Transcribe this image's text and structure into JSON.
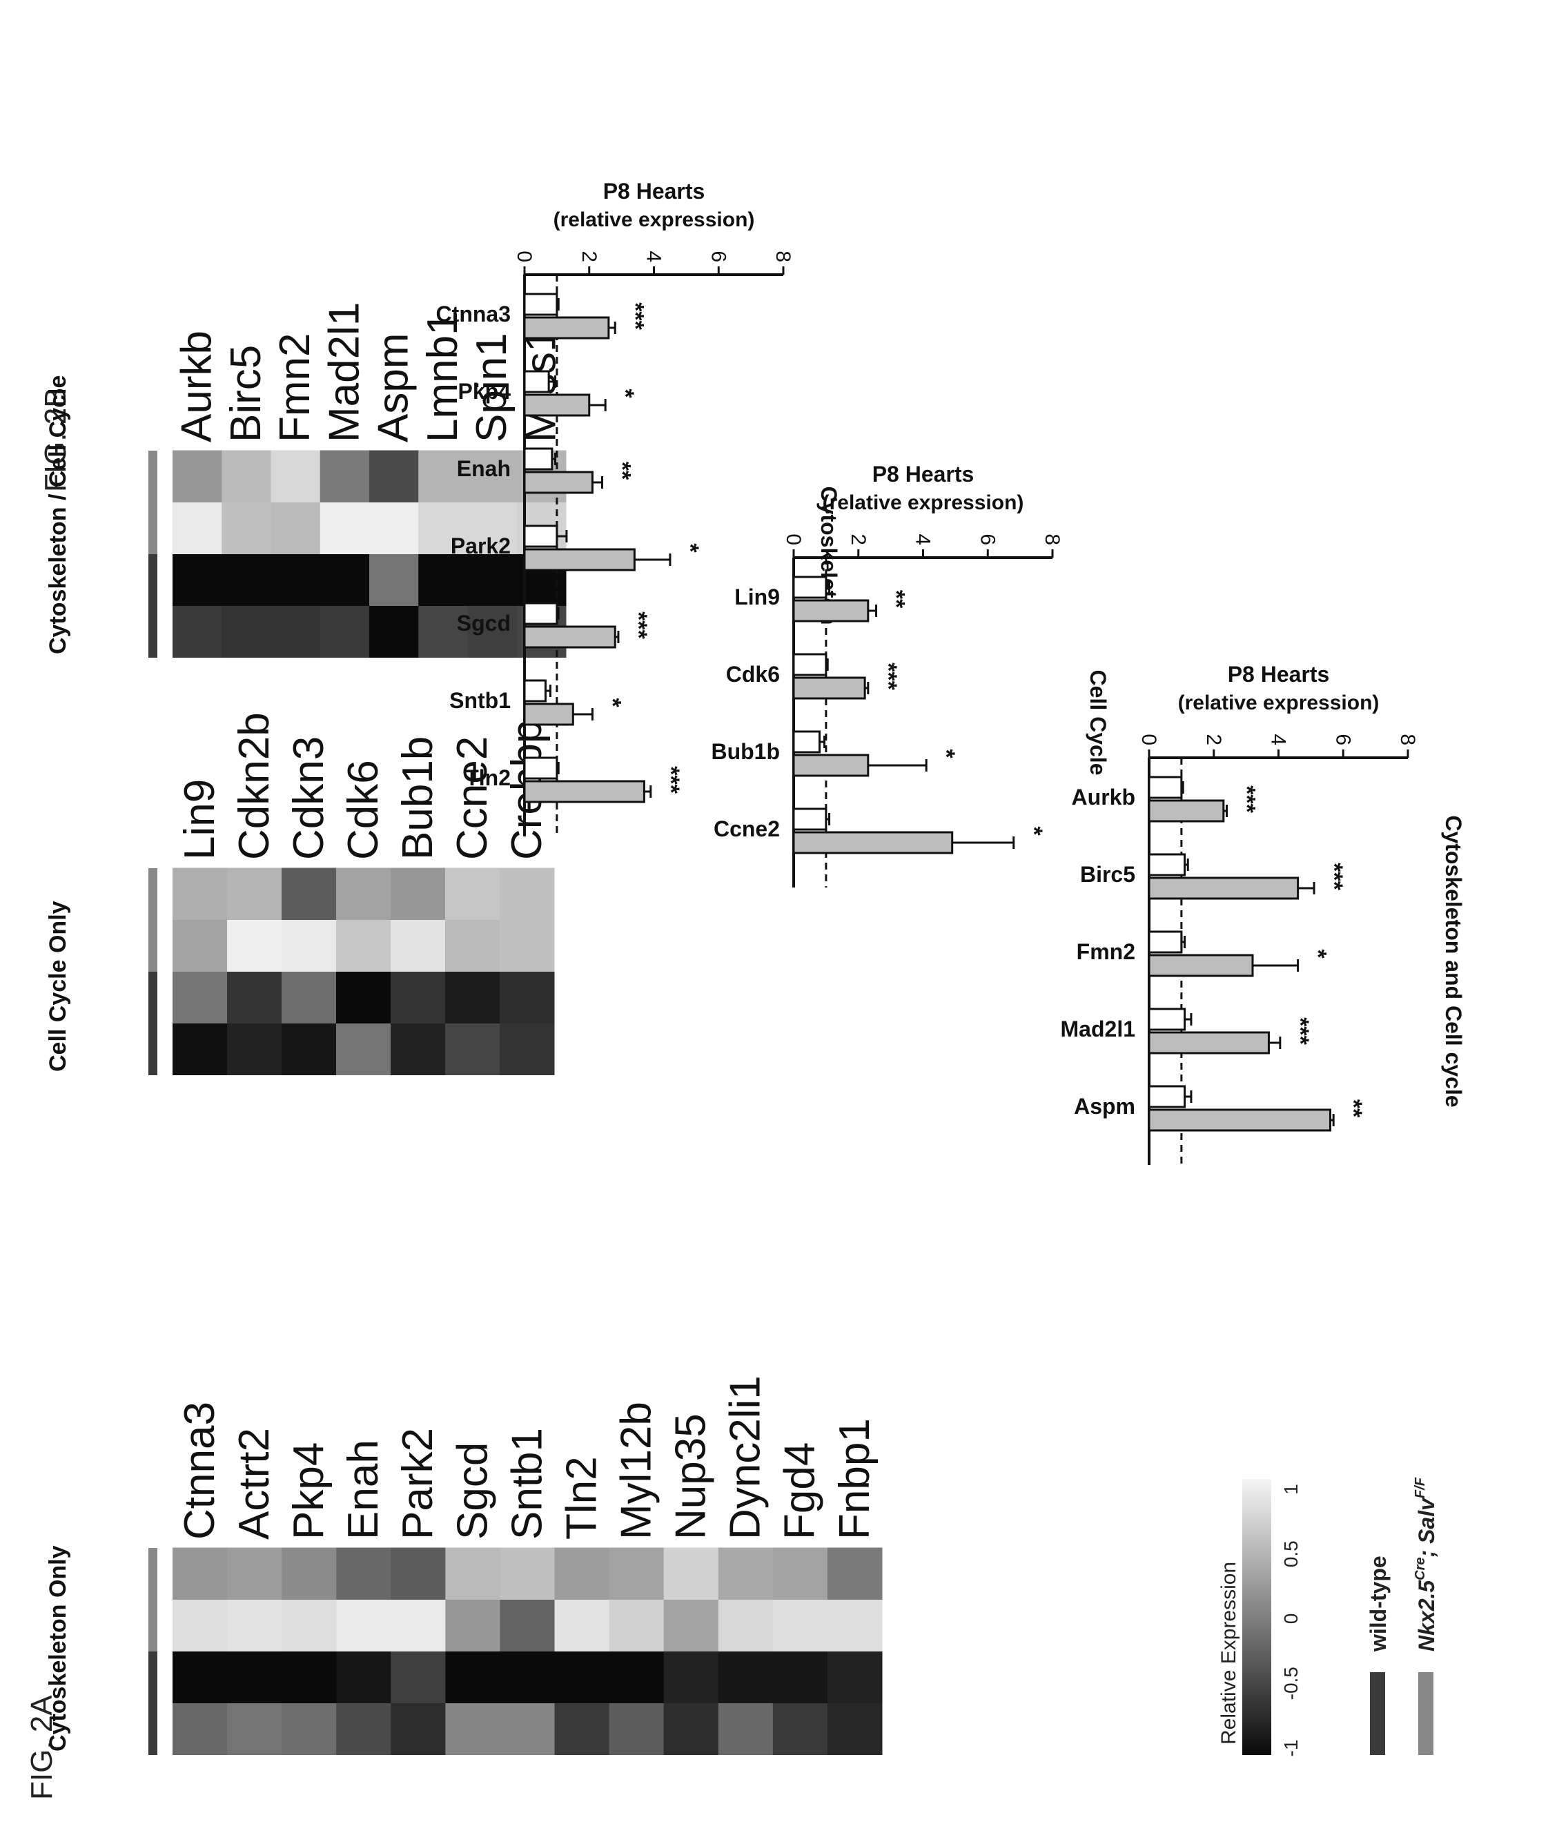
{
  "figure_labels": {
    "fig_a": "FIG. 2A",
    "fig_b": "FIG. 2B"
  },
  "heatmap_panels": [
    {
      "title": "Cytoskeleton Only",
      "genes": [
        "Ctnna3",
        "Actrt2",
        "Pkp4",
        "Enah",
        "Park2",
        "Sgcd",
        "Sntb1",
        "Tln2",
        "Myl12b",
        "Nup35",
        "Dync2li1",
        "Fgd4",
        "Fnbp1"
      ],
      "columns": [
        "wild-type",
        "wild-type",
        "Nkx2.5Cre; SalvF/F",
        "Nkx2.5Cre; SalvF/F"
      ],
      "values": [
        [
          -0.2,
          -0.1,
          -0.15,
          -0.45,
          -0.7,
          0.05,
          0.05,
          -0.6,
          -0.3,
          -0.7,
          -0.2,
          -0.6,
          -0.75
        ],
        [
          -1.0,
          -1.0,
          -1.0,
          -0.9,
          -0.55,
          -1.0,
          -1.0,
          -1.0,
          -1.0,
          -0.8,
          -0.9,
          -0.9,
          -0.8
        ],
        [
          0.8,
          0.85,
          0.8,
          0.9,
          0.9,
          0.2,
          -0.25,
          0.85,
          0.7,
          0.3,
          0.75,
          0.8,
          0.8
        ],
        [
          0.2,
          0.25,
          0.1,
          -0.2,
          -0.3,
          0.5,
          0.55,
          0.25,
          0.3,
          0.7,
          0.35,
          0.3,
          -0.05
        ]
      ]
    },
    {
      "title": "Cell Cycle Only",
      "genes": [
        "Lin9",
        "Cdkn2b",
        "Cdkn3",
        "Cdk6",
        "Bub1b",
        "Ccne2",
        "Crebbp"
      ],
      "columns": [
        "wild-type",
        "wild-type",
        "Nkx2.5Cre; SalvF/F",
        "Nkx2.5Cre; SalvF/F"
      ],
      "values": [
        [
          -0.95,
          -0.8,
          -0.9,
          -0.1,
          -0.8,
          -0.5,
          -0.65
        ],
        [
          -0.1,
          -0.65,
          -0.15,
          -1.0,
          -0.65,
          -0.85,
          -0.7
        ],
        [
          0.3,
          0.95,
          0.9,
          0.6,
          0.85,
          0.5,
          0.55
        ],
        [
          0.4,
          0.45,
          -0.3,
          0.3,
          0.2,
          0.6,
          0.55
        ]
      ]
    },
    {
      "title": "Cytoskeleton / Cell Cycle",
      "genes": [
        "Aurkb",
        "Birc5",
        "Fmn2",
        "Mad2l1",
        "Aspm",
        "Lmnb1",
        "Spin1",
        "Mtss1"
      ],
      "columns": [
        "wild-type",
        "wild-type",
        "Nkx2.5Cre; SalvF/F",
        "Nkx2.5Cre; SalvF/F"
      ],
      "values": [
        [
          -0.6,
          -0.65,
          -0.65,
          -0.6,
          -1.0,
          -0.5,
          -0.55,
          -0.5
        ],
        [
          -1.0,
          -1.0,
          -1.0,
          -1.0,
          -0.1,
          -1.0,
          -1.0,
          -1.0
        ],
        [
          0.9,
          0.55,
          0.5,
          0.95,
          0.95,
          0.75,
          0.75,
          0.7
        ],
        [
          0.2,
          0.5,
          0.75,
          -0.05,
          -0.45,
          0.45,
          0.45,
          0.45
        ]
      ]
    }
  ],
  "color_scale": {
    "title": "Relative Expression",
    "ticks": [
      "-1",
      "-0.5",
      "0",
      "0.5",
      "1"
    ],
    "low_color": "#0a0a0a",
    "high_color": "#f5f5f5"
  },
  "legend": {
    "wild_type": {
      "label": "wild-type",
      "color": "#3a3a3a"
    },
    "mutant": {
      "label_main": "Nkx2.5",
      "label_sup1": "Cre",
      "label_mid": "; Salv",
      "label_sup2": "F/F",
      "color": "#888888"
    }
  },
  "chart_data": [
    {
      "type": "bar",
      "title": "Cytoskeleton",
      "ylabel_line1": "P8 Hearts",
      "ylabel_line2": "(relative expression)",
      "ylim": [
        0,
        8
      ],
      "yticks": [
        "0",
        "2",
        "4",
        "6",
        "8"
      ],
      "categories": [
        "Ctnna3",
        "Pkp4",
        "Enah",
        "Park2",
        "Sgcd",
        "Sntb1",
        "Tln2"
      ],
      "series": [
        {
          "values": [
            1.0,
            0.75,
            0.85,
            1.0,
            1.0,
            0.65,
            1.0
          ],
          "errors": [
            0.05,
            0.2,
            0.1,
            0.3,
            0.05,
            0.15,
            0.05
          ],
          "color": "#ffffff"
        },
        {
          "values": [
            2.6,
            2.0,
            2.1,
            3.4,
            2.8,
            1.5,
            3.7
          ],
          "errors": [
            0.2,
            0.5,
            0.3,
            1.1,
            0.1,
            0.6,
            0.2
          ],
          "color": "#bdbdbd"
        }
      ],
      "significance": [
        "***",
        "*",
        "**",
        "*",
        "***",
        "*",
        "***"
      ],
      "reference_line": 1
    },
    {
      "type": "bar",
      "title": "Cell Cycle",
      "ylabel_line1": "P8 Hearts",
      "ylabel_line2": "(relative expression)",
      "ylim": [
        0,
        8
      ],
      "yticks": [
        "0",
        "2",
        "4",
        "6",
        "8"
      ],
      "categories": [
        "Lin9",
        "Cdk6",
        "Bub1b",
        "Ccne2"
      ],
      "series": [
        {
          "values": [
            1.0,
            1.0,
            0.8,
            1.0
          ],
          "errors": [
            0.1,
            0.05,
            0.15,
            0.1
          ],
          "color": "#ffffff"
        },
        {
          "values": [
            2.3,
            2.2,
            2.3,
            4.9
          ],
          "errors": [
            0.25,
            0.1,
            1.8,
            1.9
          ],
          "color": "#bdbdbd"
        }
      ],
      "significance": [
        "**",
        "***",
        "*",
        "*"
      ],
      "reference_line": 1
    },
    {
      "type": "bar",
      "title": "Cytoskeleton and Cell cycle",
      "ylabel_line1": "P8 Hearts",
      "ylabel_line2": "(relative expression)",
      "ylim": [
        0,
        8
      ],
      "yticks": [
        "0",
        "2",
        "4",
        "6",
        "8"
      ],
      "categories": [
        "Aurkb",
        "Birc5",
        "Fmn2",
        "Mad2l1",
        "Aspm"
      ],
      "series": [
        {
          "values": [
            1.0,
            1.1,
            1.0,
            1.1,
            1.1
          ],
          "errors": [
            0.05,
            0.1,
            0.1,
            0.2,
            0.2
          ],
          "color": "#ffffff"
        },
        {
          "values": [
            2.3,
            4.6,
            3.2,
            3.7,
            5.6
          ],
          "errors": [
            0.1,
            0.5,
            1.4,
            0.35,
            0.1
          ],
          "color": "#bdbdbd"
        }
      ],
      "significance": [
        "***",
        "***",
        "*",
        "***",
        "**"
      ],
      "reference_line": 1
    }
  ]
}
